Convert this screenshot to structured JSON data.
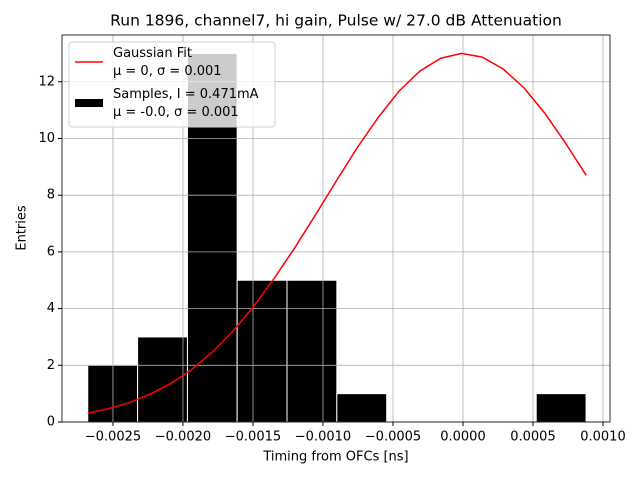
{
  "chart_data": {
    "type": "histogram",
    "title": "Run 1896, channel7, hi gain, Pulse w/ 27.0 dB Attenuation",
    "xlabel": "Timing from OFCs [ns]",
    "ylabel": "Entries",
    "xlim": [
      -0.002864,
      0.00105
    ],
    "ylim": [
      0,
      13.65
    ],
    "xticks": [
      {
        "value": -0.0025,
        "label": "−0.0025"
      },
      {
        "value": -0.002,
        "label": "−0.0020"
      },
      {
        "value": -0.0015,
        "label": "−0.0015"
      },
      {
        "value": -0.001,
        "label": "−0.0010"
      },
      {
        "value": -0.0005,
        "label": "−0.0005"
      },
      {
        "value": 0,
        "label": "0.0000"
      },
      {
        "value": 0.0005,
        "label": "0.0005"
      },
      {
        "value": 0.001,
        "label": "0.0010"
      }
    ],
    "yticks": [
      0,
      2,
      4,
      6,
      8,
      10,
      12
    ],
    "grid": true,
    "legend": "upper left",
    "series": [
      {
        "name": "Gaussian Fit\nμ = 0, σ = 0.001",
        "type": "line",
        "color": "#ff0000",
        "x": [
          -0.00268,
          -0.002532,
          -0.002383,
          -0.002235,
          -0.002087,
          -0.001938,
          -0.00179,
          -0.001642,
          -0.001493,
          -0.001345,
          -0.001197,
          -0.001048,
          -0.0009,
          -0.000752,
          -0.000603,
          -0.000455,
          -0.000307,
          -0.000158,
          -1e-05,
          0.000138,
          0.000287,
          0.000435,
          0.000583,
          0.000732,
          0.00088
        ],
        "values": [
          0.31,
          0.47,
          0.68,
          0.98,
          1.36,
          1.85,
          2.47,
          3.21,
          4.09,
          5.09,
          6.18,
          7.35,
          8.54,
          9.7,
          10.76,
          11.68,
          12.38,
          12.83,
          13.0,
          12.87,
          12.45,
          11.79,
          10.9,
          9.84,
          8.7
        ]
      },
      {
        "name": "Samples, I = 0.471mA\nμ = -0.0, σ = 0.001",
        "type": "histogram",
        "color": "#000000",
        "bins": [
          -0.00268,
          -0.002324,
          -0.001968,
          -0.001613,
          -0.001257,
          -0.000901,
          -0.000545,
          -0.000189,
          0.000167,
          0.000523,
          0.000879
        ],
        "values": [
          2,
          3,
          13,
          5,
          5,
          1,
          0,
          0,
          0,
          1
        ]
      }
    ]
  }
}
